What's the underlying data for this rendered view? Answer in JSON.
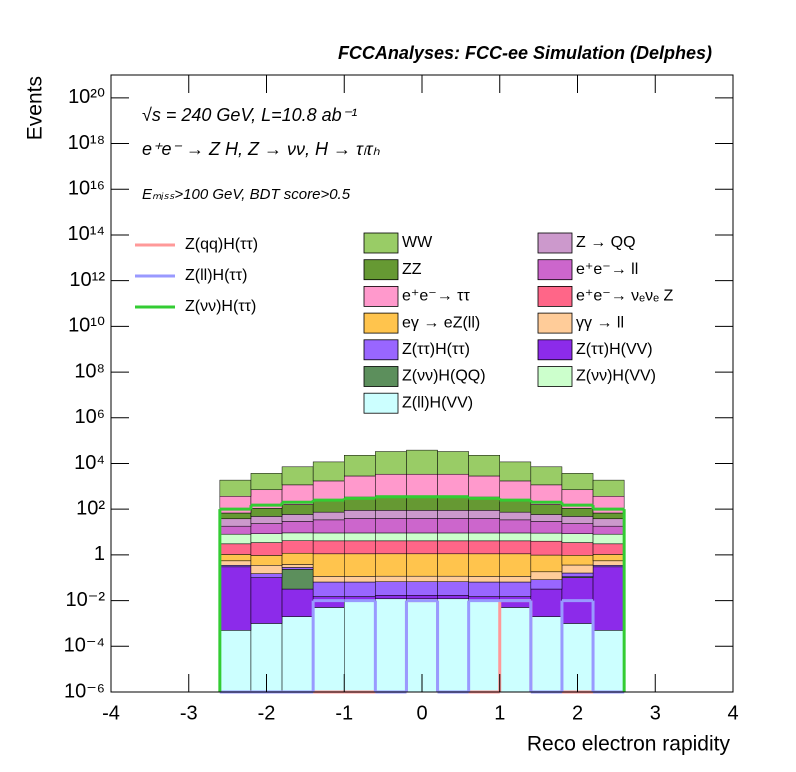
{
  "chart_data": {
    "type": "histogram",
    "title": "FCCAnalyses: FCC-ee Simulation (Delphes)",
    "annotations": [
      "√s = 240 GeV, L=10.8 ab⁻¹",
      "e⁺e⁻ → Z H, Z → νν, H → τₗτₕ",
      "Eₘᵢₛₛ>100 GeV, BDT score>0.5"
    ],
    "xlabel": "Reco electron rapidity",
    "ylabel": "Events",
    "xlim": [
      -4,
      4
    ],
    "xticks": [
      -4,
      -3,
      -2,
      -1,
      0,
      1,
      2,
      3,
      4
    ],
    "ylim": [
      1e-06,
      1e+21
    ],
    "log_y": true,
    "yticks": [
      {
        "value": 1e-06,
        "label": "10⁻⁶"
      },
      {
        "value": 0.0001,
        "label": "10⁻⁴"
      },
      {
        "value": 0.01,
        "label": "10⁻²"
      },
      1,
      {
        "value": 100,
        "label": "10²"
      },
      {
        "value": 10000.0,
        "label": "10⁴"
      },
      {
        "value": 1000000.0,
        "label": "10⁶"
      },
      {
        "value": 100000000.0,
        "label": "10⁸"
      },
      {
        "value": 10000000000.0,
        "label": "10¹⁰"
      },
      {
        "value": 1000000000000.0,
        "label": "10¹²"
      },
      {
        "value": 100000000000000.0,
        "label": "10¹⁴"
      },
      {
        "value": 1e+16,
        "label": "10¹⁶"
      },
      {
        "value": 1e+18,
        "label": "10¹⁸"
      },
      {
        "value": 1e+20,
        "label": "10²⁰"
      }
    ],
    "bins": [
      -2.6,
      -2.2,
      -1.8,
      -1.4,
      -1.0,
      -0.6,
      -0.2,
      0.2,
      0.6,
      1.0,
      1.4,
      1.8,
      2.2,
      2.6
    ],
    "series": [
      {
        "name": "Z(ll)H(VV)",
        "color": "#ccffff",
        "stacked": true,
        "values": [
          0.0005,
          0.001,
          0.002,
          0.005,
          0.01,
          0.012,
          0.012,
          0.012,
          0.01,
          0.005,
          0.002,
          0.001,
          0.0005
        ]
      },
      {
        "name": "Z(ττ)H(VV)",
        "color": "#8c2bea",
        "stacked": true,
        "values": [
          0.3,
          0.1,
          0.03,
          0.01,
          0.005,
          0.005,
          0.005,
          0.005,
          0.005,
          0.01,
          0.03,
          0.1,
          0.3
        ]
      },
      {
        "name": "Z(νν)H(QQ)",
        "color": "#5c8f5c",
        "stacked": true,
        "values": [
          0,
          0,
          0.2,
          0,
          0,
          0,
          0,
          0,
          0,
          0,
          0,
          0.01,
          0
        ]
      },
      {
        "name": "Z(ττ)H(ττ)",
        "color": "#9966ff",
        "stacked": true,
        "values": [
          0.05,
          0.05,
          0.05,
          0.05,
          0.05,
          0.05,
          0.05,
          0.05,
          0.05,
          0.05,
          0.05,
          0.05,
          0.05
        ]
      },
      {
        "name": "γγ → ll",
        "color": "#ffcc99",
        "stacked": true,
        "values": [
          0.2,
          0.2,
          0.1,
          0.05,
          0.05,
          0.05,
          0.05,
          0.05,
          0.05,
          0.05,
          0.1,
          0.2,
          0.2
        ]
      },
      {
        "name": "eγ → eZ(ll)",
        "color": "#ffc44d",
        "stacked": true,
        "values": [
          0.5,
          0.6,
          0.8,
          1,
          1,
          1,
          1,
          1,
          1,
          1,
          0.8,
          0.6,
          0.5
        ]
      },
      {
        "name": "e⁺e⁻→ νₑνₑ Z",
        "color": "#ff6688",
        "stacked": true,
        "values": [
          2,
          2.5,
          3,
          3,
          3,
          3,
          3,
          3,
          3,
          3,
          3,
          2.5,
          2
        ]
      },
      {
        "name": "Z(νν)H(VV)",
        "color": "#ccffcc",
        "stacked": true,
        "values": [
          5,
          5,
          5,
          5,
          5,
          5,
          5,
          5,
          5,
          5,
          5,
          5,
          5
        ]
      },
      {
        "name": "e⁺e⁻→ ll",
        "color": "#cc66cc",
        "stacked": true,
        "values": [
          10,
          15,
          20,
          25,
          30,
          30,
          30,
          30,
          30,
          25,
          20,
          15,
          10
        ]
      },
      {
        "name": "Z → QQ",
        "color": "#cc99cc",
        "stacked": true,
        "values": [
          20,
          25,
          30,
          40,
          50,
          50,
          50,
          50,
          50,
          40,
          30,
          25,
          20
        ]
      },
      {
        "name": "ZZ",
        "color": "#669933",
        "stacked": true,
        "values": [
          30,
          60,
          100,
          150,
          250,
          300,
          300,
          300,
          250,
          150,
          100,
          60,
          30
        ]
      },
      {
        "name": "e⁺e⁻→ ττ",
        "color": "#ff99cc",
        "stacked": true,
        "values": [
          300,
          600,
          1000,
          1500,
          2500,
          3000,
          3000,
          3000,
          2500,
          1500,
          1000,
          600,
          300
        ]
      },
      {
        "name": "WW",
        "color": "#99cc66",
        "stacked": true,
        "values": [
          1500,
          3000,
          6000,
          10000,
          20000,
          30000,
          35000,
          30000,
          20000,
          10000,
          6000,
          3000,
          1500
        ]
      },
      {
        "name": "Z(qq)H(ττ)",
        "color": "#ff9999",
        "stacked": false,
        "values": [
          0,
          0,
          0,
          0,
          0,
          0,
          0.01,
          0,
          0,
          0.01,
          0,
          0,
          0
        ]
      },
      {
        "name": "Z(ll)H(ττ)",
        "color": "#9999ff",
        "stacked": false,
        "values": [
          0,
          0,
          0,
          0.01,
          0.01,
          0,
          0.01,
          0,
          0.01,
          0.01,
          0,
          0.01,
          0
        ]
      },
      {
        "name": "Z(νν)H(ττ)",
        "color": "#33cc33",
        "stacked": false,
        "values": [
          100,
          150,
          200,
          250,
          300,
          350,
          350,
          350,
          300,
          250,
          200,
          150,
          100
        ]
      }
    ]
  }
}
